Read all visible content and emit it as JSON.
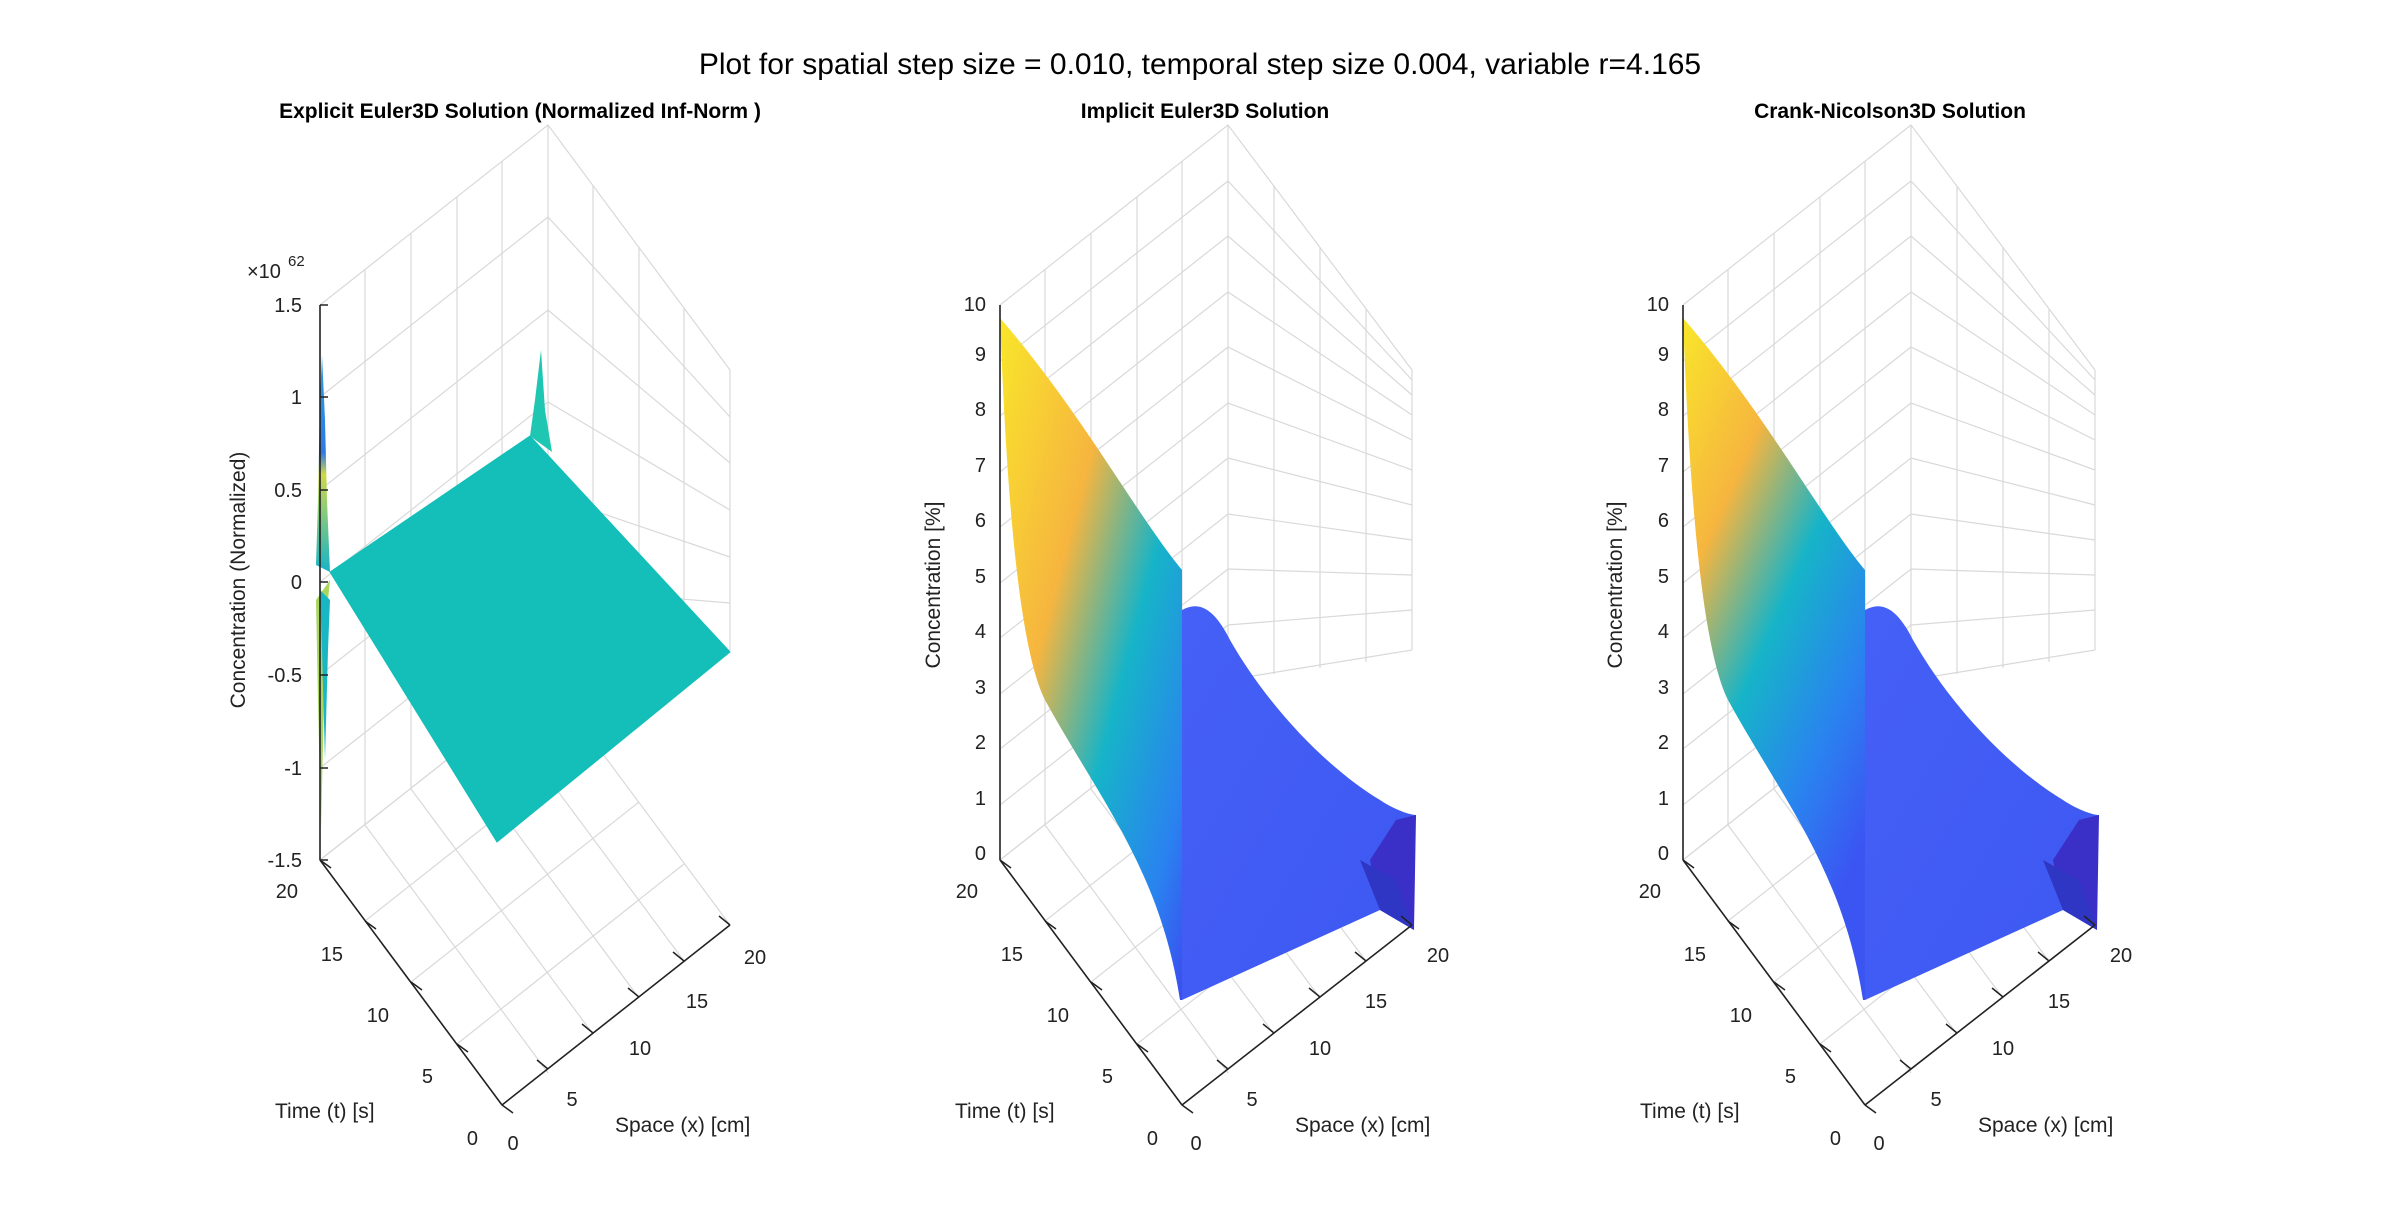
{
  "figure": {
    "suptitle": "Plot for spatial step size = 0.010, temporal step size 0.004, variable r=4.165"
  },
  "chart_data": [
    {
      "type": "surface",
      "title": "Explicit Euler3D Solution (Normalized Inf-Norm )",
      "xlabel": "Space (x) [cm]",
      "ylabel": "Time (t) [s]",
      "zlabel": "Concentration (Normalized)",
      "z_exponent_label": "×10",
      "z_exponent": "62",
      "xlim": [
        0,
        20
      ],
      "ylim": [
        0,
        20
      ],
      "zlim": [
        -1.5,
        1.5
      ],
      "xticks": [
        "0",
        "5",
        "10",
        "15",
        "20"
      ],
      "yticks": [
        "0",
        "5",
        "10",
        "15",
        "20"
      ],
      "zticks": [
        "-1.5",
        "-1",
        "-0.5",
        "0",
        "0.5",
        "1",
        "1.5"
      ],
      "grid": true,
      "surface_color": "#13bfb8",
      "oscillation_colors": [
        "#2c7be5",
        "#2a9fe0",
        "#cfd84a",
        "#8fcf5a"
      ]
    },
    {
      "type": "surface",
      "title": "Implicit Euler3D Solution",
      "xlabel": "Space (x) [cm]",
      "ylabel": "Time (t) [s]",
      "zlabel": "Concentration [%]",
      "xlim": [
        0,
        20
      ],
      "ylim": [
        0,
        20
      ],
      "zlim": [
        0,
        10
      ],
      "xticks": [
        "0",
        "5",
        "10",
        "15",
        "20"
      ],
      "yticks": [
        "0",
        "5",
        "10",
        "15",
        "20"
      ],
      "zticks": [
        "0",
        "1",
        "2",
        "3",
        "4",
        "5",
        "6",
        "7",
        "8",
        "9",
        "10"
      ],
      "grid": true,
      "colormap": [
        "#3b4cf0",
        "#2a82f0",
        "#16b4c8",
        "#67cc8a",
        "#f6b53f",
        "#f9e62a"
      ]
    },
    {
      "type": "surface",
      "title": "Crank-Nicolson3D Solution",
      "xlabel": "Space (x) [cm]",
      "ylabel": "Time (t) [s]",
      "zlabel": "Concentration [%]",
      "xlim": [
        0,
        20
      ],
      "ylim": [
        0,
        20
      ],
      "zlim": [
        0,
        10
      ],
      "xticks": [
        "0",
        "5",
        "10",
        "15",
        "20"
      ],
      "yticks": [
        "0",
        "5",
        "10",
        "15",
        "20"
      ],
      "zticks": [
        "0",
        "1",
        "2",
        "3",
        "4",
        "5",
        "6",
        "7",
        "8",
        "9",
        "10"
      ],
      "grid": true,
      "colormap": [
        "#3b4cf0",
        "#2a82f0",
        "#16b4c8",
        "#67cc8a",
        "#f6b53f",
        "#f9e62a"
      ]
    }
  ]
}
